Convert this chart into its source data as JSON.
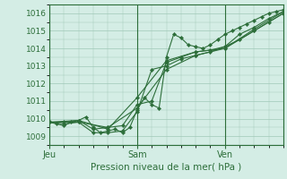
{
  "background_color": "#d4ede5",
  "grid_color": "#a0c8b8",
  "line_color": "#2d6e3a",
  "marker_color": "#2d6e3a",
  "title": "Pression niveau de la mer( hPa )",
  "ylabel_ticks": [
    1009,
    1010,
    1011,
    1012,
    1013,
    1014,
    1015,
    1016
  ],
  "xlim": [
    0,
    96
  ],
  "ylim": [
    1008.5,
    1016.5
  ],
  "xtick_positions": [
    0,
    36,
    72
  ],
  "xtick_labels": [
    "Jeu",
    "Sam",
    "Ven"
  ],
  "vline_positions": [
    0,
    36,
    72
  ],
  "series": [
    {
      "x": [
        0,
        3,
        6,
        9,
        12,
        15,
        18,
        21,
        24,
        27,
        30,
        33,
        36,
        39,
        42,
        45,
        48,
        51,
        54,
        57,
        60,
        63,
        66,
        69,
        72,
        75,
        78,
        81,
        84,
        87,
        90,
        93,
        96
      ],
      "y": [
        1009.8,
        1009.7,
        1009.6,
        1009.8,
        1009.9,
        1010.1,
        1009.5,
        1009.2,
        1009.3,
        1009.4,
        1009.2,
        1009.5,
        1010.5,
        1011.2,
        1010.8,
        1010.6,
        1013.5,
        1014.8,
        1014.6,
        1014.2,
        1014.1,
        1014.0,
        1014.2,
        1014.5,
        1014.8,
        1015.0,
        1015.2,
        1015.4,
        1015.6,
        1015.8,
        1016.0,
        1016.1,
        1016.2
      ]
    },
    {
      "x": [
        0,
        6,
        12,
        18,
        24,
        30,
        36,
        42,
        48,
        54,
        60,
        66,
        72,
        78,
        84,
        90,
        96
      ],
      "y": [
        1009.8,
        1009.8,
        1009.9,
        1009.4,
        1009.5,
        1009.6,
        1010.8,
        1011.0,
        1013.2,
        1013.5,
        1013.8,
        1013.9,
        1014.1,
        1014.8,
        1015.2,
        1015.7,
        1016.1
      ]
    },
    {
      "x": [
        0,
        6,
        12,
        18,
        24,
        30,
        36,
        42,
        48,
        54,
        60,
        66,
        72,
        78,
        84,
        90,
        96
      ],
      "y": [
        1009.8,
        1009.7,
        1009.8,
        1009.2,
        1009.2,
        1009.3,
        1010.4,
        1012.8,
        1013.0,
        1013.4,
        1013.6,
        1013.8,
        1014.1,
        1014.5,
        1015.0,
        1015.5,
        1016.0
      ]
    },
    {
      "x": [
        0,
        12,
        24,
        36,
        48,
        60,
        72,
        84,
        96
      ],
      "y": [
        1009.8,
        1009.9,
        1009.4,
        1011.2,
        1013.3,
        1013.8,
        1014.0,
        1015.1,
        1016.1
      ]
    },
    {
      "x": [
        0,
        12,
        24,
        36,
        48,
        60,
        72,
        84,
        96
      ],
      "y": [
        1009.8,
        1009.8,
        1009.5,
        1010.6,
        1012.8,
        1013.6,
        1014.0,
        1015.0,
        1016.0
      ]
    }
  ]
}
